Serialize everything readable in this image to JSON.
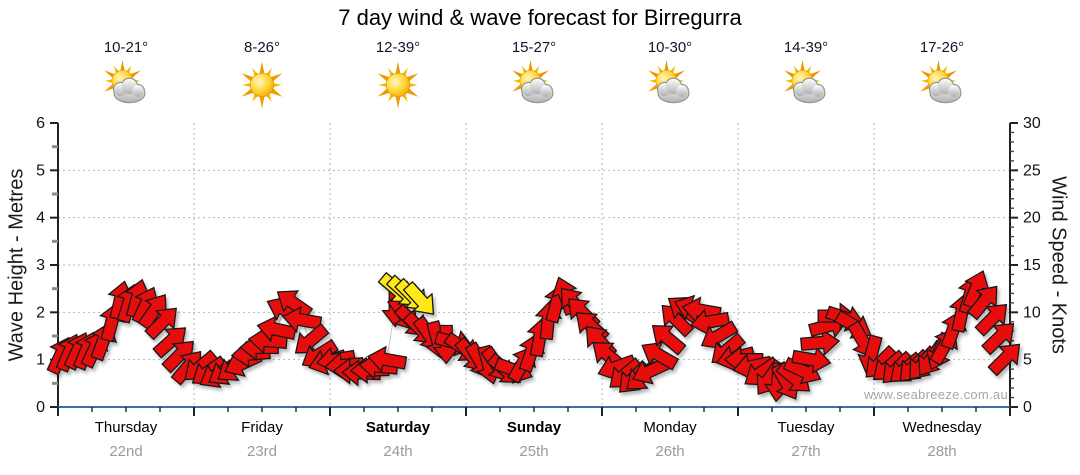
{
  "title": "7 day wind & wave forecast for Birregurra",
  "watermark": "www.seabreeze.com.au",
  "colors": {
    "arrow_red": "#e8100e",
    "arrow_yellow": "#ffe912",
    "arrow_outline": "#181818",
    "axis_black": "#222222",
    "axis_blue": "#3a6ea5",
    "grid_gray": "#b5b5b5",
    "minor_tick_gray": "#8a8a8a",
    "date_gray": "#9a9a9a",
    "watermark_gray": "#a6a6a6",
    "series_line_gray": "#c6c6c6"
  },
  "axes": {
    "left_label": "Wave Height - Metres",
    "right_label": "Wind Speed - Knots",
    "left_ticks": [
      0,
      1,
      2,
      3,
      4,
      5,
      6
    ],
    "right_ticks": [
      0,
      5,
      10,
      15,
      20,
      25,
      30
    ],
    "left_minor_step": 0.5,
    "right_minor_step": 1,
    "bottom_minor_hours": 6
  },
  "days": [
    {
      "name": "Thursday",
      "date": "22nd",
      "temp": "10-21°",
      "icon": "sun-cloud",
      "bold": false
    },
    {
      "name": "Friday",
      "date": "23rd",
      "temp": "8-26°",
      "icon": "sun",
      "bold": false
    },
    {
      "name": "Saturday",
      "date": "24th",
      "temp": "12-39°",
      "icon": "sun",
      "bold": true
    },
    {
      "name": "Sunday",
      "date": "25th",
      "temp": "15-27°",
      "icon": "sun-cloud",
      "bold": true
    },
    {
      "name": "Monday",
      "date": "26th",
      "temp": "10-30°",
      "icon": "sun-cloud",
      "bold": false
    },
    {
      "name": "Tuesday",
      "date": "27th",
      "temp": "14-39°",
      "icon": "sun-cloud",
      "bold": false
    },
    {
      "name": "Wednesday",
      "date": "28th",
      "temp": "17-26°",
      "icon": "sun-cloud",
      "bold": false
    }
  ],
  "chart_data": {
    "type": "scatter",
    "title": "7 day wind & wave forecast for Birregurra",
    "x_axis": {
      "unit": "hours",
      "range": [
        0,
        168
      ],
      "categories": [
        "Thursday 22nd",
        "Friday 23rd",
        "Saturday 24th",
        "Sunday 25th",
        "Monday 26th",
        "Tuesday 27th",
        "Wednesday 28th"
      ]
    },
    "y_left": {
      "label": "Wave Height - Metres",
      "range": [
        0,
        6
      ]
    },
    "y_right": {
      "label": "Wind Speed - Knots",
      "range": [
        0,
        30
      ]
    },
    "grid": "dotted horizontal each metre, dotted vertical each day boundary, legend none",
    "arrow_format": "[hours_from_start, wind_speed_knots, direction_deg_clockwise_from_east]",
    "red_arrows": [
      [
        0.5,
        5.5,
        295
      ],
      [
        2,
        5.8,
        293
      ],
      [
        3.5,
        6,
        295
      ],
      [
        5,
        6,
        292
      ],
      [
        6.5,
        6.2,
        295
      ],
      [
        8,
        7,
        290
      ],
      [
        9.5,
        9,
        285
      ],
      [
        11,
        11.3,
        283
      ],
      [
        12.5,
        11,
        287
      ],
      [
        14,
        11.5,
        285
      ],
      [
        15.5,
        10.8,
        295
      ],
      [
        17,
        10.2,
        305
      ],
      [
        18.5,
        9,
        315
      ],
      [
        20,
        7,
        318
      ],
      [
        21.5,
        5.5,
        315
      ],
      [
        23,
        4.3,
        310
      ],
      [
        25,
        4.2,
        140
      ],
      [
        26.5,
        3.7,
        145
      ],
      [
        28,
        3.4,
        150
      ],
      [
        29.5,
        3.7,
        148
      ],
      [
        31,
        4.1,
        145
      ],
      [
        32.5,
        4.6,
        155
      ],
      [
        34,
        5.6,
        175
      ],
      [
        35.5,
        6.3,
        180
      ],
      [
        37,
        7,
        185
      ],
      [
        38.5,
        8.2,
        192
      ],
      [
        40,
        10.3,
        205
      ],
      [
        41.5,
        11,
        215
      ],
      [
        43,
        9.2,
        190
      ],
      [
        44.5,
        7,
        140
      ],
      [
        46,
        5.5,
        148
      ],
      [
        47.5,
        4.8,
        162
      ],
      [
        49,
        5,
        170
      ],
      [
        50.5,
        4.4,
        175
      ],
      [
        52,
        3.8,
        180
      ],
      [
        53.5,
        3.6,
        182
      ],
      [
        55,
        3.9,
        178
      ],
      [
        56.5,
        4.3,
        185
      ],
      [
        58,
        5,
        190
      ],
      [
        59.5,
        10.5,
        90
      ],
      [
        61,
        9.8,
        55
      ],
      [
        62.5,
        9,
        45
      ],
      [
        64,
        8.2,
        45
      ],
      [
        65.5,
        7.6,
        55
      ],
      [
        67,
        7,
        75
      ],
      [
        68.5,
        6.6,
        90
      ],
      [
        70,
        6.8,
        15
      ],
      [
        71.5,
        6.2,
        35
      ],
      [
        73,
        5.4,
        50
      ],
      [
        74.5,
        4.8,
        60
      ],
      [
        76,
        4.4,
        75
      ],
      [
        77.5,
        4.4,
        55
      ],
      [
        79,
        3.9,
        40
      ],
      [
        80.5,
        3.9,
        20
      ],
      [
        82,
        4.6,
        300
      ],
      [
        83.5,
        5.8,
        288
      ],
      [
        85,
        7.4,
        280
      ],
      [
        86.5,
        9.2,
        276
      ],
      [
        88,
        11,
        285
      ],
      [
        89.5,
        11.8,
        250
      ],
      [
        91,
        11,
        230
      ],
      [
        92.5,
        10,
        225
      ],
      [
        94,
        8.6,
        222
      ],
      [
        95.5,
        7,
        228
      ],
      [
        97,
        5.5,
        220
      ],
      [
        98.5,
        4.2,
        160
      ],
      [
        100,
        3.4,
        140
      ],
      [
        101.5,
        3,
        135
      ],
      [
        103,
        3.2,
        140
      ],
      [
        104.5,
        3.8,
        155
      ],
      [
        106,
        5.5,
        210
      ],
      [
        107.5,
        7.3,
        220
      ],
      [
        109,
        9.3,
        225
      ],
      [
        110.5,
        10.3,
        215
      ],
      [
        112,
        10.4,
        200
      ],
      [
        113.5,
        10.2,
        190
      ],
      [
        115,
        9,
        170
      ],
      [
        116.5,
        7.5,
        150
      ],
      [
        118,
        6,
        140
      ],
      [
        119.5,
        5.2,
        165
      ],
      [
        121,
        5,
        180
      ],
      [
        122.5,
        4.3,
        168
      ],
      [
        124,
        3.6,
        145
      ],
      [
        125.5,
        3,
        125
      ],
      [
        127,
        2.6,
        95
      ],
      [
        128.5,
        2.6,
        60
      ],
      [
        130,
        3,
        40
      ],
      [
        131.5,
        3.8,
        25
      ],
      [
        133,
        5,
        10
      ],
      [
        134.5,
        6.8,
        355
      ],
      [
        136,
        8.6,
        345
      ],
      [
        137.5,
        9.6,
        0
      ],
      [
        139,
        9.4,
        18
      ],
      [
        140.5,
        8.6,
        30
      ],
      [
        142,
        7,
        60
      ],
      [
        143.5,
        5.5,
        105
      ],
      [
        145,
        4.6,
        135
      ],
      [
        146.5,
        4.2,
        140
      ],
      [
        148,
        4,
        135
      ],
      [
        149.5,
        4,
        140
      ],
      [
        151,
        4.2,
        135
      ],
      [
        152.5,
        4.5,
        130
      ],
      [
        154,
        5,
        125
      ],
      [
        155.5,
        5.8,
        115
      ],
      [
        156.5,
        6.5,
        300
      ],
      [
        158,
        8.2,
        290
      ],
      [
        159.5,
        10,
        282
      ],
      [
        161,
        11.9,
        286
      ],
      [
        162,
        12.5,
        292
      ],
      [
        163.5,
        11.2,
        310
      ],
      [
        165,
        9.4,
        315
      ],
      [
        166.2,
        7.4,
        316
      ],
      [
        167.3,
        5.2,
        315
      ]
    ],
    "yellow_arrows": [
      [
        59.8,
        12.4,
        40
      ],
      [
        61.2,
        12.1,
        42
      ],
      [
        62.6,
        11.7,
        45
      ],
      [
        64,
        11.3,
        48
      ]
    ]
  }
}
